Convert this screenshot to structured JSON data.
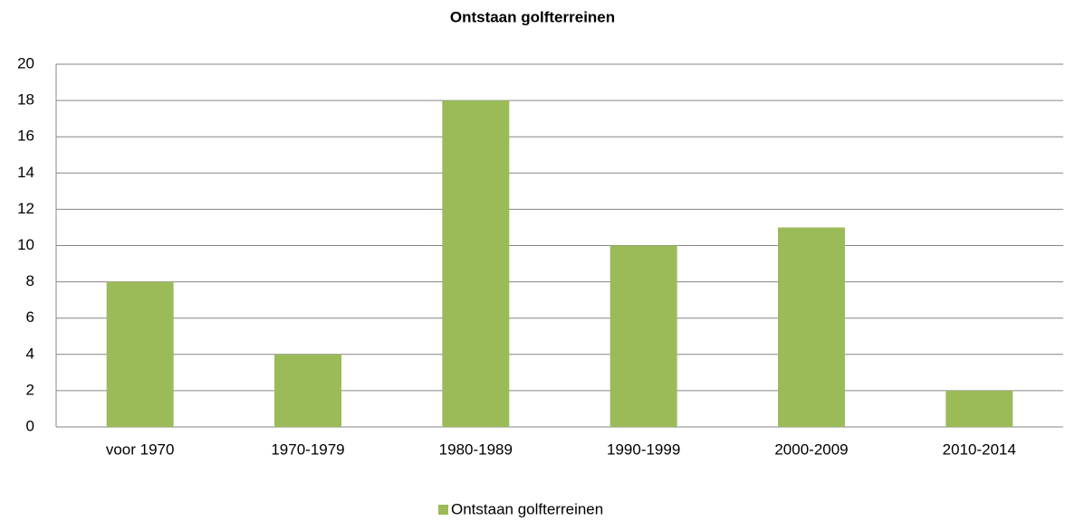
{
  "chart_data": {
    "type": "bar",
    "title": "Ontstaan golfterreinen",
    "categories": [
      "voor 1970",
      "1970-1979",
      "1980-1989",
      "1990-1999",
      "2000-2009",
      "2010-2014"
    ],
    "series": [
      {
        "name": "Ontstaan golfterreinen",
        "color": "#9bbb59",
        "values": [
          8,
          4,
          18,
          10,
          11,
          2
        ]
      }
    ],
    "ylim": [
      0,
      20
    ],
    "yticks": [
      0,
      2,
      4,
      6,
      8,
      10,
      12,
      14,
      16,
      18,
      20
    ],
    "grid": true,
    "legend": "bottom"
  }
}
